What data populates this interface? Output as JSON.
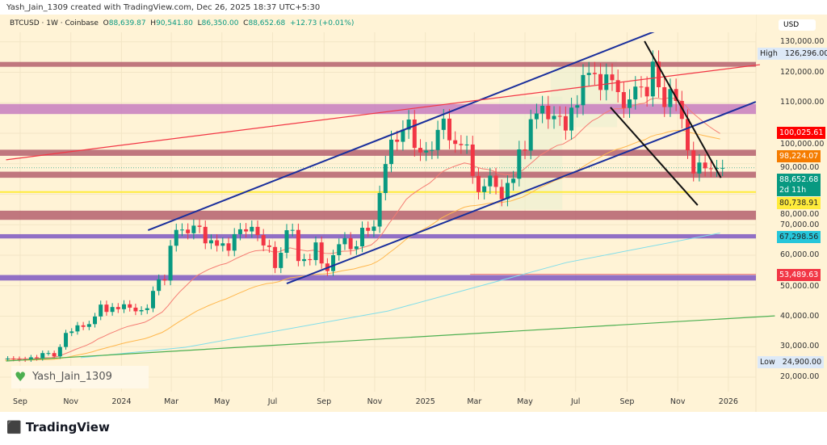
{
  "header": {
    "caption": "Yash_Jain_1309 created with TradingView.com, Dec 26, 2025 18:37 UTC+5:30",
    "symbol": "BTCUSD · 1W · Coinbase",
    "open_label": "O",
    "open": "88,639.87",
    "high_label": "H",
    "high": "90,541.80",
    "low_label": "L",
    "low": "86,350.00",
    "close_label": "C",
    "close": "88,652.68",
    "change": "+12.73 (+0.01%)"
  },
  "currency": "USD",
  "watermark": "Yash_Jain_1309",
  "footer": {
    "logo": "TradingView"
  },
  "colors": {
    "background": "#fff3d6",
    "up": "#089981",
    "down": "#f23645",
    "channel": "#1a2f9c",
    "resistance_line": "#f23645",
    "wedge": "#111111",
    "support_line": "#ffeb3b",
    "long_trend": "#4caf50"
  },
  "chart_data": {
    "type": "candlestick",
    "interval": "1W",
    "y_scale": "linear",
    "ylim": [
      15000,
      135000
    ],
    "grid": true,
    "x_start": "2023-08-14",
    "closes": [
      26100,
      26000,
      25900,
      25800,
      26500,
      26200,
      27900,
      27900,
      26800,
      29900,
      34500,
      35000,
      37000,
      36500,
      37400,
      39900,
      43800,
      41400,
      43000,
      42300,
      43900,
      42800,
      41600,
      42000,
      42600,
      48300,
      52100,
      51700,
      63100,
      68300,
      68400,
      67200,
      69700,
      69300,
      63900,
      64900,
      63100,
      63900,
      61500,
      66900,
      68500,
      67800,
      69300,
      66600,
      63200,
      62700,
      55800,
      60800,
      68200,
      68300,
      58100,
      58700,
      58400,
      64200,
      57300,
      54800,
      60000,
      63600,
      65600,
      62000,
      62900,
      69000,
      68000,
      69400,
      80400,
      89900,
      97900,
      97200,
      101200,
      104500,
      95200,
      93700,
      94300,
      94500,
      101100,
      104800,
      97700,
      96500,
      96100,
      96300,
      86000,
      80700,
      82600,
      86100,
      82400,
      78400,
      83700,
      85100,
      94700,
      94300,
      104600,
      106500,
      109000,
      104600,
      105700,
      105600,
      100900,
      108400,
      109200,
      119100,
      119800,
      119400,
      114200,
      119300,
      117400,
      113500,
      108300,
      111100,
      115300,
      115200,
      112100,
      123500,
      115100,
      108600,
      114500,
      110600,
      104700,
      94400,
      86800,
      90400,
      88500,
      88300,
      88600,
      88652.68
    ],
    "x_ticks": [
      "Sep",
      "Nov",
      "2024",
      "Mar",
      "May",
      "Jul",
      "Sep",
      "Nov",
      "2025",
      "Mar",
      "May",
      "Jul",
      "Sep",
      "Nov",
      "2026"
    ],
    "x_tick_dates": [
      "2023-09-01",
      "2023-11-01",
      "2024-01-01",
      "2024-03-01",
      "2024-05-01",
      "2024-07-01",
      "2024-09-01",
      "2024-11-01",
      "2025-01-01",
      "2025-03-01",
      "2025-05-01",
      "2025-07-01",
      "2025-09-01",
      "2025-11-01",
      "2026-01-01"
    ],
    "y_ticks": [
      130000,
      120000,
      110000,
      100000,
      90000,
      80000,
      70000,
      60000,
      50000,
      40000,
      30000,
      20000
    ],
    "y_tick_labels": [
      "130,000.00",
      "120,000.00",
      "110,000.00",
      "100,000.00",
      "90,000.00",
      "80,000.00",
      "70,000.00",
      "60,000.00",
      "50,000.00",
      "40,000.00",
      "30,000.00",
      "20,000.00"
    ],
    "zones": [
      {
        "from": 121800,
        "to": 123400,
        "color": "#b5606f"
      },
      {
        "from": 106300,
        "to": 109600,
        "color": "#c77dbf"
      },
      {
        "from": 92600,
        "to": 94600,
        "color": "#b5606f"
      },
      {
        "from": 85400,
        "to": 87400,
        "color": "#b5606f"
      },
      {
        "from": 71600,
        "to": 74600,
        "color": "#b5606f"
      },
      {
        "from": 65500,
        "to": 66900,
        "color": "#7e57c2"
      },
      {
        "from": 51700,
        "to": 53500,
        "color": "#7e57c2"
      }
    ],
    "lines": [
      {
        "name": "channel-upper",
        "from": [
          "2024-02-02",
          68200
        ],
        "to": [
          "2025-10-06",
          133600
        ],
        "color": "#1a2f9c",
        "width": 2
      },
      {
        "name": "channel-lower",
        "from": [
          "2024-07-18",
          50700
        ],
        "to": [
          "2026-02-03",
          110300
        ],
        "color": "#1a2f9c",
        "width": 2
      },
      {
        "name": "resistance-trendline",
        "from": [
          "2023-08-15",
          91300
        ],
        "to": [
          "2026-02-08",
          122500
        ],
        "color": "#f23645",
        "width": 1.2
      },
      {
        "name": "wedge-upper",
        "from": [
          "2025-09-22",
          130200
        ],
        "to": [
          "2025-12-23",
          85400
        ],
        "color": "#111",
        "width": 2
      },
      {
        "name": "wedge-lower",
        "from": [
          "2025-08-12",
          108500
        ],
        "to": [
          "2025-11-25",
          76400
        ],
        "color": "#111",
        "width": 2
      },
      {
        "name": "long-term-trendline",
        "from": [
          "2023-08-15",
          25300
        ],
        "to": [
          "2026-02-26",
          40100
        ],
        "color": "#4caf50",
        "width": 1.2
      }
    ],
    "ma_200_points": [
      [
        "2023-11-13",
        26400
      ],
      [
        "2024-03-18",
        29800
      ],
      [
        "2024-11-17",
        41700
      ],
      [
        "2025-06-20",
        57600
      ],
      [
        "2025-12-22",
        67298.56
      ]
    ],
    "price_tags": [
      {
        "label": "High",
        "value": "126,296.00",
        "price": 126296,
        "bg": "#dde9f7",
        "fg": "#222"
      },
      {
        "label": "",
        "value": "100,025.61",
        "price": 100025.61,
        "bg": "#ff0000",
        "fg": "#fff"
      },
      {
        "label": "",
        "value": "98,224.07",
        "price": 98224.07,
        "bg": "#f57c00",
        "fg": "#fff"
      },
      {
        "label": "",
        "value": "88,652.68",
        "sub": "2d 11h",
        "price": 88652.68,
        "bg": "#089981",
        "fg": "#fff"
      },
      {
        "label": "",
        "value": "80,738.91",
        "price": 80738.91,
        "bg": "#ffeb3b",
        "fg": "#222"
      },
      {
        "label": "",
        "value": "67,298.56",
        "price": 67298.56,
        "bg": "#26c6da",
        "fg": "#222"
      },
      {
        "label": "",
        "value": "53,489.63",
        "price": 53489.63,
        "bg": "#f23645",
        "fg": "#fff"
      },
      {
        "label": "Low",
        "value": "24,900.00",
        "price": 24900,
        "bg": "#dde9f7",
        "fg": "#222"
      }
    ]
  }
}
